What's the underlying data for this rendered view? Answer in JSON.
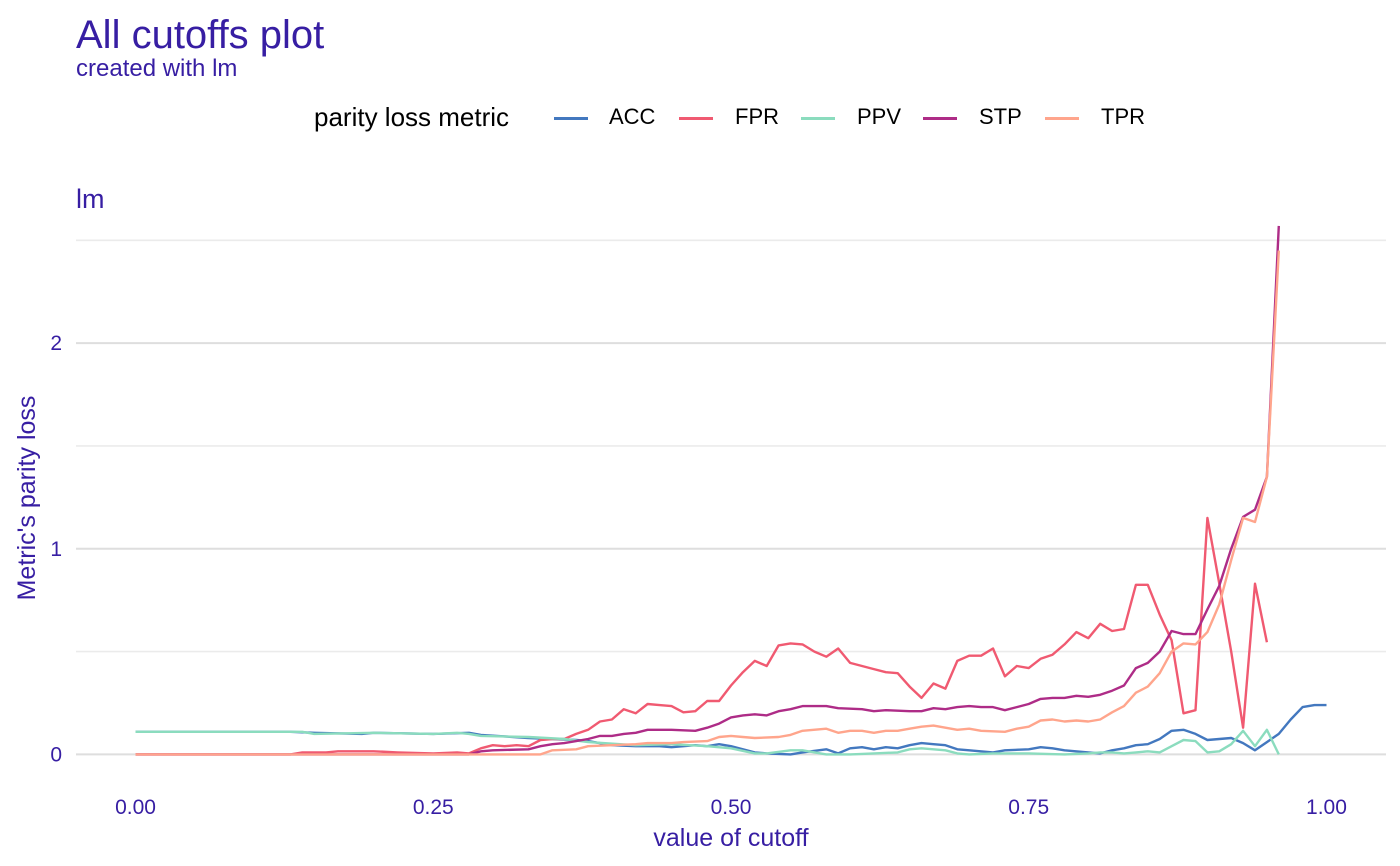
{
  "title": "All cutoffs plot",
  "subtitle": "created with lm",
  "panel_label": "lm",
  "legend_title": "parity loss metric",
  "chart_data": {
    "type": "line",
    "title": "All cutoffs plot",
    "subtitle": "created with lm",
    "xlabel": "value of cutoff",
    "ylabel": "Metric's parity loss",
    "xlim": [
      -0.05,
      1.05
    ],
    "ylim": [
      -0.1,
      2.55
    ],
    "x_ticks": [
      0,
      0.25,
      0.5,
      0.75,
      1.0
    ],
    "x_tick_labels": [
      "0.00",
      "0.25",
      "0.50",
      "0.75",
      "1.00"
    ],
    "y_ticks": [
      0,
      1,
      2
    ],
    "y_tick_labels": [
      "0",
      "1",
      "2"
    ],
    "grid": true,
    "legend_position": "top",
    "series": [
      {
        "name": "ACC",
        "color": "#4378bf",
        "points": [
          [
            0.0,
            0.11
          ],
          [
            0.13,
            0.11
          ],
          [
            0.15,
            0.105
          ],
          [
            0.19,
            0.1
          ],
          [
            0.2,
            0.105
          ],
          [
            0.25,
            0.1
          ],
          [
            0.28,
            0.105
          ],
          [
            0.29,
            0.095
          ],
          [
            0.33,
            0.08
          ],
          [
            0.35,
            0.075
          ],
          [
            0.37,
            0.07
          ],
          [
            0.38,
            0.065
          ],
          [
            0.4,
            0.045
          ],
          [
            0.42,
            0.04
          ],
          [
            0.44,
            0.04
          ],
          [
            0.45,
            0.035
          ],
          [
            0.47,
            0.045
          ],
          [
            0.48,
            0.04
          ],
          [
            0.49,
            0.05
          ],
          [
            0.5,
            0.04
          ],
          [
            0.52,
            0.01
          ],
          [
            0.53,
            0.005
          ],
          [
            0.55,
            0.0
          ],
          [
            0.56,
            0.01
          ],
          [
            0.58,
            0.025
          ],
          [
            0.59,
            0.005
          ],
          [
            0.6,
            0.03
          ],
          [
            0.61,
            0.035
          ],
          [
            0.62,
            0.025
          ],
          [
            0.63,
            0.035
          ],
          [
            0.64,
            0.03
          ],
          [
            0.65,
            0.045
          ],
          [
            0.66,
            0.055
          ],
          [
            0.67,
            0.05
          ],
          [
            0.68,
            0.045
          ],
          [
            0.69,
            0.025
          ],
          [
            0.7,
            0.02
          ],
          [
            0.72,
            0.01
          ],
          [
            0.73,
            0.02
          ],
          [
            0.75,
            0.025
          ],
          [
            0.76,
            0.035
          ],
          [
            0.77,
            0.03
          ],
          [
            0.78,
            0.02
          ],
          [
            0.8,
            0.01
          ],
          [
            0.81,
            0.005
          ],
          [
            0.82,
            0.02
          ],
          [
            0.83,
            0.03
          ],
          [
            0.84,
            0.045
          ],
          [
            0.85,
            0.05
          ],
          [
            0.86,
            0.075
          ],
          [
            0.87,
            0.115
          ],
          [
            0.88,
            0.12
          ],
          [
            0.89,
            0.1
          ],
          [
            0.9,
            0.07
          ],
          [
            0.91,
            0.075
          ],
          [
            0.92,
            0.08
          ],
          [
            0.93,
            0.055
          ],
          [
            0.94,
            0.02
          ],
          [
            0.95,
            0.06
          ],
          [
            0.96,
            0.1
          ],
          [
            0.97,
            0.17
          ],
          [
            0.98,
            0.23
          ],
          [
            0.99,
            0.24
          ],
          [
            1.0,
            0.24
          ]
        ]
      },
      {
        "name": "FPR",
        "color": "#f05a71",
        "points": [
          [
            0.0,
            0.0
          ],
          [
            0.13,
            0.0
          ],
          [
            0.14,
            0.01
          ],
          [
            0.16,
            0.01
          ],
          [
            0.17,
            0.015
          ],
          [
            0.2,
            0.015
          ],
          [
            0.22,
            0.01
          ],
          [
            0.25,
            0.005
          ],
          [
            0.27,
            0.01
          ],
          [
            0.28,
            0.005
          ],
          [
            0.29,
            0.03
          ],
          [
            0.3,
            0.045
          ],
          [
            0.31,
            0.04
          ],
          [
            0.32,
            0.045
          ],
          [
            0.33,
            0.04
          ],
          [
            0.34,
            0.07
          ],
          [
            0.35,
            0.075
          ],
          [
            0.36,
            0.075
          ],
          [
            0.37,
            0.1
          ],
          [
            0.38,
            0.12
          ],
          [
            0.39,
            0.16
          ],
          [
            0.4,
            0.17
          ],
          [
            0.41,
            0.22
          ],
          [
            0.42,
            0.2
          ],
          [
            0.43,
            0.245
          ],
          [
            0.44,
            0.24
          ],
          [
            0.45,
            0.235
          ],
          [
            0.46,
            0.205
          ],
          [
            0.47,
            0.21
          ],
          [
            0.48,
            0.26
          ],
          [
            0.49,
            0.26
          ],
          [
            0.5,
            0.335
          ],
          [
            0.51,
            0.4
          ],
          [
            0.52,
            0.455
          ],
          [
            0.53,
            0.43
          ],
          [
            0.54,
            0.53
          ],
          [
            0.55,
            0.54
          ],
          [
            0.56,
            0.535
          ],
          [
            0.57,
            0.5
          ],
          [
            0.58,
            0.475
          ],
          [
            0.59,
            0.515
          ],
          [
            0.6,
            0.445
          ],
          [
            0.61,
            0.43
          ],
          [
            0.62,
            0.415
          ],
          [
            0.63,
            0.4
          ],
          [
            0.64,
            0.395
          ],
          [
            0.65,
            0.33
          ],
          [
            0.66,
            0.275
          ],
          [
            0.67,
            0.345
          ],
          [
            0.68,
            0.32
          ],
          [
            0.69,
            0.455
          ],
          [
            0.7,
            0.48
          ],
          [
            0.71,
            0.48
          ],
          [
            0.72,
            0.515
          ],
          [
            0.73,
            0.38
          ],
          [
            0.74,
            0.43
          ],
          [
            0.75,
            0.42
          ],
          [
            0.76,
            0.465
          ],
          [
            0.77,
            0.485
          ],
          [
            0.78,
            0.535
          ],
          [
            0.79,
            0.595
          ],
          [
            0.8,
            0.565
          ],
          [
            0.81,
            0.635
          ],
          [
            0.82,
            0.6
          ],
          [
            0.83,
            0.61
          ],
          [
            0.84,
            0.825
          ],
          [
            0.85,
            0.825
          ],
          [
            0.86,
            0.68
          ],
          [
            0.87,
            0.555
          ],
          [
            0.88,
            0.2
          ],
          [
            0.89,
            0.215
          ],
          [
            0.9,
            1.15
          ],
          [
            0.91,
            0.83
          ],
          [
            0.92,
            0.5
          ],
          [
            0.93,
            0.13
          ],
          [
            0.94,
            0.83
          ],
          [
            0.95,
            0.545
          ]
        ]
      },
      {
        "name": "PPV",
        "color": "#8bdcbe",
        "points": [
          [
            0.0,
            0.11
          ],
          [
            0.14,
            0.11
          ],
          [
            0.15,
            0.1
          ],
          [
            0.2,
            0.105
          ],
          [
            0.25,
            0.1
          ],
          [
            0.27,
            0.105
          ],
          [
            0.28,
            0.1
          ],
          [
            0.29,
            0.09
          ],
          [
            0.33,
            0.085
          ],
          [
            0.36,
            0.075
          ],
          [
            0.38,
            0.06
          ],
          [
            0.42,
            0.045
          ],
          [
            0.45,
            0.05
          ],
          [
            0.48,
            0.04
          ],
          [
            0.5,
            0.03
          ],
          [
            0.52,
            0.005
          ],
          [
            0.53,
            0.005
          ],
          [
            0.55,
            0.02
          ],
          [
            0.56,
            0.02
          ],
          [
            0.58,
            0.0
          ],
          [
            0.6,
            0.0
          ],
          [
            0.62,
            0.005
          ],
          [
            0.64,
            0.01
          ],
          [
            0.65,
            0.025
          ],
          [
            0.66,
            0.03
          ],
          [
            0.68,
            0.02
          ],
          [
            0.69,
            0.005
          ],
          [
            0.7,
            0.0
          ],
          [
            0.72,
            0.005
          ],
          [
            0.75,
            0.005
          ],
          [
            0.78,
            0.0
          ],
          [
            0.8,
            0.005
          ],
          [
            0.81,
            0.01
          ],
          [
            0.82,
            0.01
          ],
          [
            0.83,
            0.005
          ],
          [
            0.84,
            0.01
          ],
          [
            0.85,
            0.015
          ],
          [
            0.86,
            0.01
          ],
          [
            0.87,
            0.04
          ],
          [
            0.88,
            0.07
          ],
          [
            0.89,
            0.065
          ],
          [
            0.9,
            0.01
          ],
          [
            0.91,
            0.015
          ],
          [
            0.92,
            0.05
          ],
          [
            0.93,
            0.115
          ],
          [
            0.94,
            0.04
          ],
          [
            0.95,
            0.12
          ],
          [
            0.96,
            0.0
          ]
        ]
      },
      {
        "name": "STP",
        "color": "#ae2c87",
        "points": [
          [
            0.0,
            0.0
          ],
          [
            0.28,
            0.0
          ],
          [
            0.29,
            0.015
          ],
          [
            0.3,
            0.02
          ],
          [
            0.33,
            0.025
          ],
          [
            0.34,
            0.04
          ],
          [
            0.35,
            0.05
          ],
          [
            0.36,
            0.055
          ],
          [
            0.37,
            0.065
          ],
          [
            0.38,
            0.075
          ],
          [
            0.39,
            0.09
          ],
          [
            0.4,
            0.09
          ],
          [
            0.41,
            0.1
          ],
          [
            0.42,
            0.105
          ],
          [
            0.43,
            0.12
          ],
          [
            0.45,
            0.12
          ],
          [
            0.47,
            0.115
          ],
          [
            0.48,
            0.13
          ],
          [
            0.49,
            0.15
          ],
          [
            0.5,
            0.18
          ],
          [
            0.51,
            0.19
          ],
          [
            0.52,
            0.195
          ],
          [
            0.53,
            0.19
          ],
          [
            0.54,
            0.21
          ],
          [
            0.55,
            0.22
          ],
          [
            0.56,
            0.235
          ],
          [
            0.58,
            0.235
          ],
          [
            0.59,
            0.225
          ],
          [
            0.61,
            0.22
          ],
          [
            0.62,
            0.21
          ],
          [
            0.63,
            0.215
          ],
          [
            0.65,
            0.21
          ],
          [
            0.66,
            0.21
          ],
          [
            0.67,
            0.225
          ],
          [
            0.68,
            0.22
          ],
          [
            0.69,
            0.23
          ],
          [
            0.7,
            0.235
          ],
          [
            0.71,
            0.23
          ],
          [
            0.72,
            0.23
          ],
          [
            0.73,
            0.215
          ],
          [
            0.74,
            0.23
          ],
          [
            0.75,
            0.245
          ],
          [
            0.76,
            0.27
          ],
          [
            0.77,
            0.275
          ],
          [
            0.78,
            0.275
          ],
          [
            0.79,
            0.285
          ],
          [
            0.8,
            0.28
          ],
          [
            0.81,
            0.29
          ],
          [
            0.82,
            0.31
          ],
          [
            0.83,
            0.335
          ],
          [
            0.84,
            0.42
          ],
          [
            0.85,
            0.445
          ],
          [
            0.86,
            0.5
          ],
          [
            0.87,
            0.6
          ],
          [
            0.88,
            0.585
          ],
          [
            0.89,
            0.585
          ],
          [
            0.9,
            0.705
          ],
          [
            0.91,
            0.82
          ],
          [
            0.92,
            1.0
          ],
          [
            0.93,
            1.155
          ],
          [
            0.94,
            1.19
          ],
          [
            0.95,
            1.35
          ],
          [
            0.96,
            2.57
          ]
        ]
      },
      {
        "name": "TPR",
        "color": "#ffa58c",
        "points": [
          [
            0.0,
            0.0
          ],
          [
            0.3,
            0.0
          ],
          [
            0.34,
            0.0
          ],
          [
            0.35,
            0.02
          ],
          [
            0.37,
            0.025
          ],
          [
            0.38,
            0.04
          ],
          [
            0.4,
            0.045
          ],
          [
            0.42,
            0.05
          ],
          [
            0.43,
            0.055
          ],
          [
            0.45,
            0.055
          ],
          [
            0.46,
            0.06
          ],
          [
            0.48,
            0.065
          ],
          [
            0.49,
            0.085
          ],
          [
            0.5,
            0.09
          ],
          [
            0.51,
            0.085
          ],
          [
            0.52,
            0.08
          ],
          [
            0.54,
            0.085
          ],
          [
            0.55,
            0.095
          ],
          [
            0.56,
            0.115
          ],
          [
            0.58,
            0.125
          ],
          [
            0.59,
            0.105
          ],
          [
            0.6,
            0.115
          ],
          [
            0.61,
            0.115
          ],
          [
            0.62,
            0.105
          ],
          [
            0.63,
            0.115
          ],
          [
            0.64,
            0.115
          ],
          [
            0.65,
            0.125
          ],
          [
            0.66,
            0.135
          ],
          [
            0.67,
            0.14
          ],
          [
            0.68,
            0.13
          ],
          [
            0.69,
            0.12
          ],
          [
            0.7,
            0.125
          ],
          [
            0.71,
            0.115
          ],
          [
            0.73,
            0.11
          ],
          [
            0.74,
            0.125
          ],
          [
            0.75,
            0.135
          ],
          [
            0.76,
            0.165
          ],
          [
            0.77,
            0.17
          ],
          [
            0.78,
            0.16
          ],
          [
            0.79,
            0.165
          ],
          [
            0.8,
            0.16
          ],
          [
            0.81,
            0.17
          ],
          [
            0.82,
            0.205
          ],
          [
            0.83,
            0.235
          ],
          [
            0.84,
            0.3
          ],
          [
            0.85,
            0.33
          ],
          [
            0.86,
            0.395
          ],
          [
            0.87,
            0.5
          ],
          [
            0.88,
            0.54
          ],
          [
            0.89,
            0.535
          ],
          [
            0.9,
            0.595
          ],
          [
            0.91,
            0.73
          ],
          [
            0.92,
            0.945
          ],
          [
            0.93,
            1.15
          ],
          [
            0.94,
            1.13
          ],
          [
            0.95,
            1.35
          ],
          [
            0.96,
            2.45
          ]
        ]
      }
    ]
  }
}
